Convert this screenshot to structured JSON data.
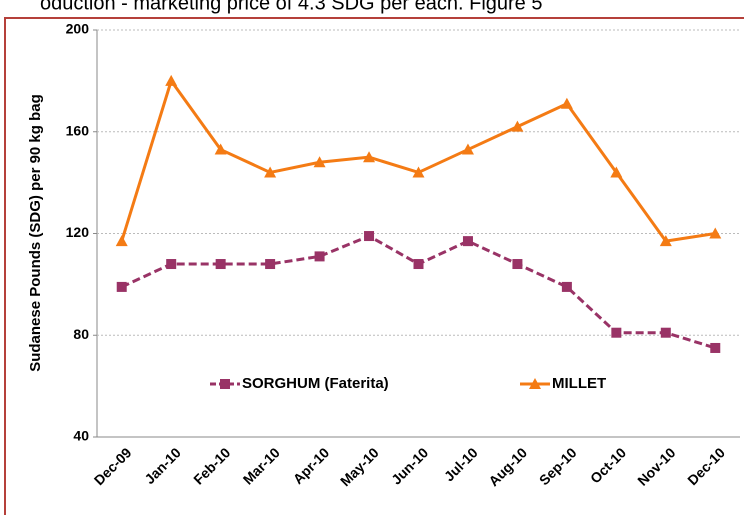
{
  "caption": "oduction - marketing price of 4.3 SDG per each. Figure 5",
  "chart_data": {
    "type": "line",
    "y_label": "Sudanese Pounds (SDG) per 90 kg bag",
    "categories": [
      "Dec-09",
      "Jan-10",
      "Feb-10",
      "Mar-10",
      "Apr-10",
      "May-10",
      "Jun-10",
      "Jul-10",
      "Aug-10",
      "Sep-10",
      "Oct-10",
      "Nov-10",
      "Dec-10"
    ],
    "series": [
      {
        "name": "SORGHUM (Faterita)",
        "color": "#993366",
        "marker": "square",
        "values": [
          99,
          108,
          108,
          108,
          111,
          119,
          108,
          117,
          108,
          99,
          81,
          81,
          75
        ]
      },
      {
        "name": "MILLET",
        "color": "#f47b14",
        "marker": "triangle",
        "values": [
          117,
          180,
          153,
          144,
          148,
          150,
          144,
          153,
          162,
          171,
          144,
          117,
          120
        ]
      }
    ],
    "ylim": [
      40,
      200
    ],
    "yticks": [
      40,
      80,
      120,
      160,
      200
    ],
    "grid": true,
    "legend": "center"
  }
}
